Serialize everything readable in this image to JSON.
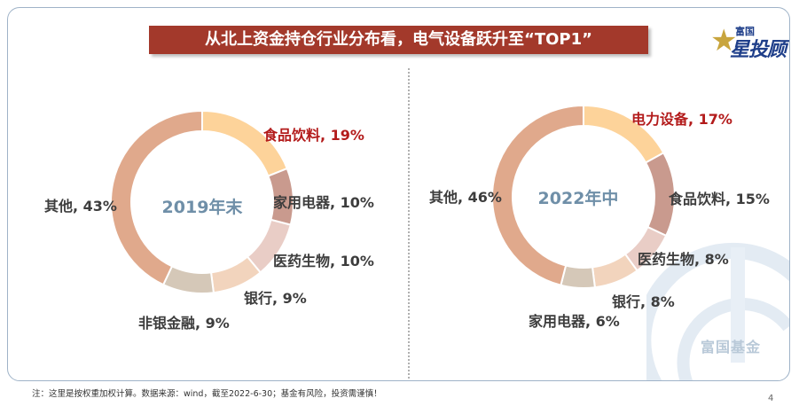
{
  "title": "从北上资金持仓行业分布看，电气设备跃升至“TOP1”",
  "logo": {
    "top": "富国",
    "main": "星投顾",
    "star": "★"
  },
  "watermark": "富国基金",
  "footnote": "注：这里是按权重加权计算。数据来源：wind，截至2022-6-30；基金有风险，投资需谨慎！",
  "page_number": "4",
  "chart_data": [
    {
      "type": "pie",
      "title": "2019年末",
      "slices": [
        {
          "label": "食品饮料, 19%",
          "name": "食品饮料",
          "value": 19,
          "color": "#fdd39a",
          "highlight": true
        },
        {
          "label": "家用电器, 10%",
          "name": "家用电器",
          "value": 10,
          "color": "#c99a8e",
          "highlight": false
        },
        {
          "label": "医药生物, 10%",
          "name": "医药生物",
          "value": 10,
          "color": "#e9cdc6",
          "highlight": false
        },
        {
          "label": "银行, 9%",
          "name": "银行",
          "value": 9,
          "color": "#f2d4bd",
          "highlight": false
        },
        {
          "label": "非银金融, 9%",
          "name": "非银金融",
          "value": 9,
          "color": "#d5c8b8",
          "highlight": false
        },
        {
          "label": "其他, 43%",
          "name": "其他",
          "value": 43,
          "color": "#e0a98c",
          "highlight": false
        }
      ]
    },
    {
      "type": "pie",
      "title": "2022年中",
      "slices": [
        {
          "label": "电力设备, 17%",
          "name": "电力设备",
          "value": 17,
          "color": "#fdd39a",
          "highlight": true
        },
        {
          "label": "食品饮料, 15%",
          "name": "食品饮料",
          "value": 15,
          "color": "#c99a8e",
          "highlight": false
        },
        {
          "label": "医药生物, 8%",
          "name": "医药生物",
          "value": 8,
          "color": "#e9cdc6",
          "highlight": false
        },
        {
          "label": "银行, 8%",
          "name": "银行",
          "value": 8,
          "color": "#f2d4bd",
          "highlight": false
        },
        {
          "label": "家用电器, 6%",
          "name": "家用电器",
          "value": 6,
          "color": "#d5c8b8",
          "highlight": false
        },
        {
          "label": "其他, 46%",
          "name": "其他",
          "value": 46,
          "color": "#e0a98c",
          "highlight": false
        }
      ]
    }
  ]
}
